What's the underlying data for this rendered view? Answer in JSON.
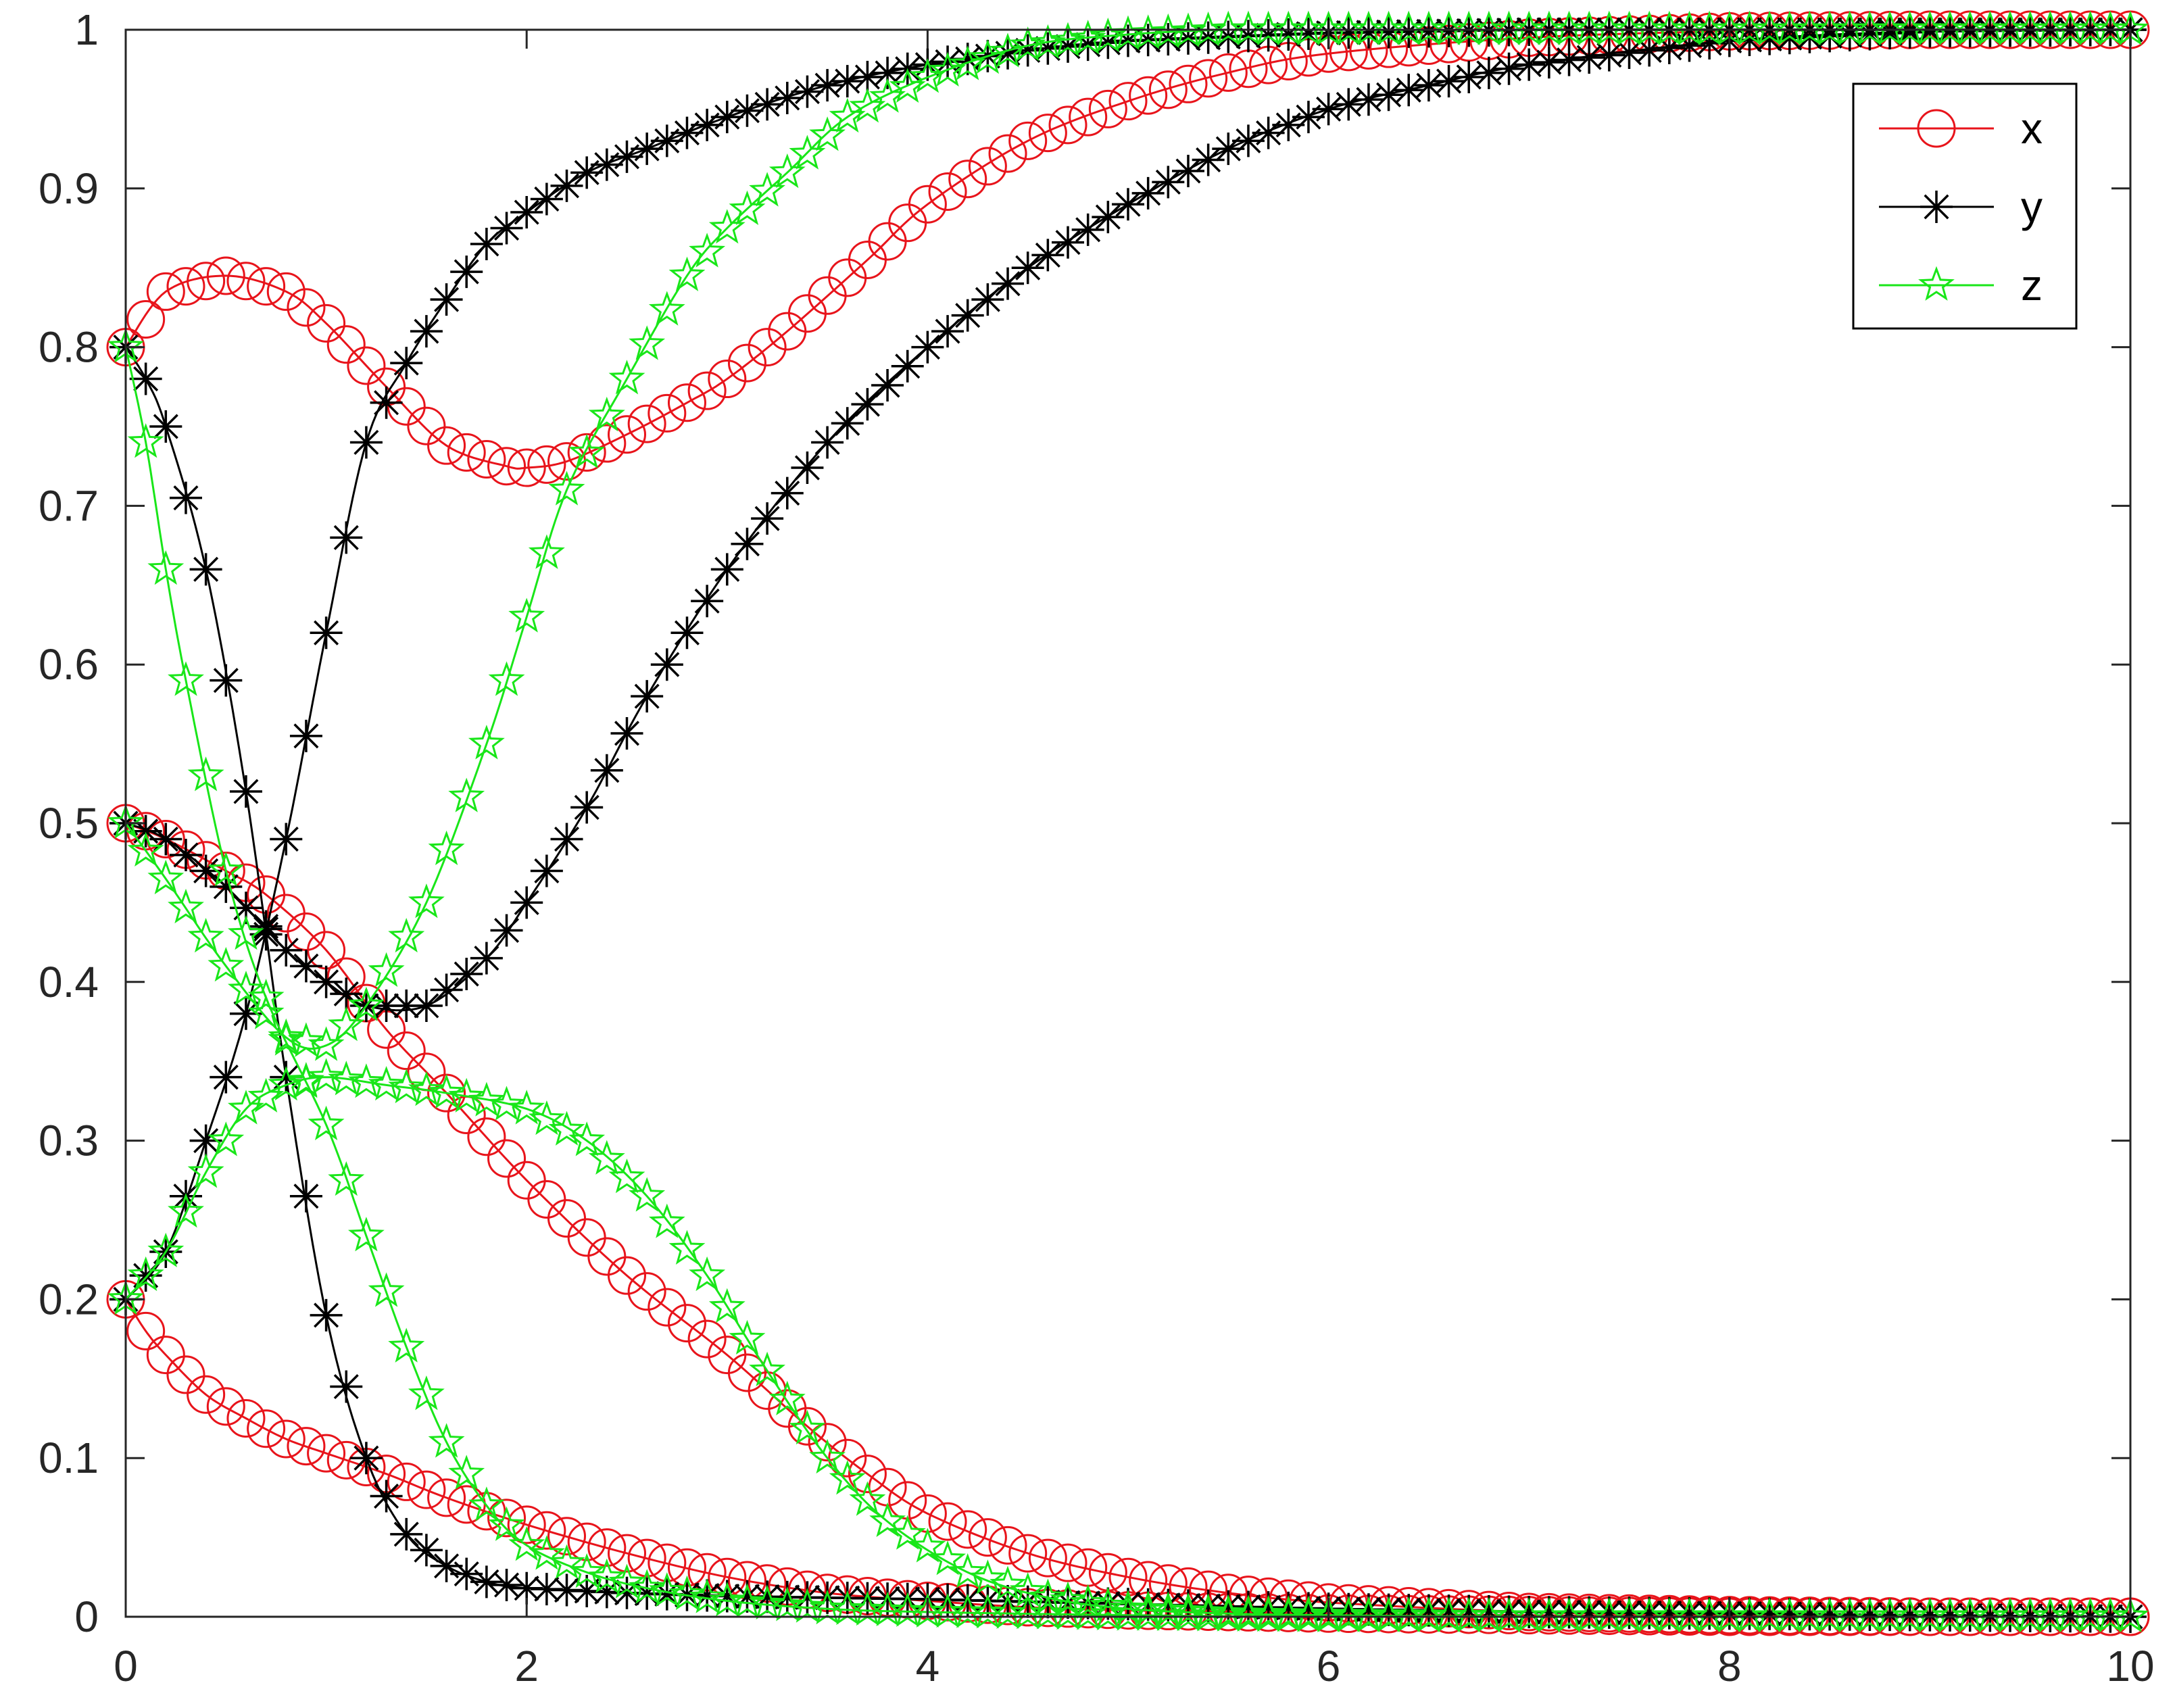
{
  "chart_data": {
    "type": "line",
    "title": "",
    "xlabel": "",
    "ylabel": "",
    "xlim": [
      0,
      10
    ],
    "ylim": [
      0,
      1
    ],
    "x_ticks": [
      0,
      2,
      4,
      6,
      8,
      10
    ],
    "x_tick_labels": [
      "0",
      "2",
      "4",
      "6",
      "8",
      "10"
    ],
    "y_ticks": [
      0,
      0.1,
      0.2,
      0.3,
      0.4,
      0.5,
      0.6,
      0.7,
      0.8,
      0.9,
      1
    ],
    "y_tick_labels": [
      "0",
      "0.1",
      "0.2",
      "0.3",
      "0.4",
      "0.5",
      "0.6",
      "0.7",
      "0.8",
      "0.9",
      "1"
    ],
    "grid": false,
    "legend_position": "top-right",
    "legend": [
      {
        "label": "x",
        "color": "#e8141b",
        "marker": "circle"
      },
      {
        "label": "y",
        "color": "#000000",
        "marker": "asterisk"
      },
      {
        "label": "z",
        "color": "#19e619",
        "marker": "pentagram"
      }
    ],
    "series": [
      {
        "name": "x",
        "color": "#e8141b",
        "marker": "circle",
        "x": [
          0,
          0.2,
          0.5,
          0.8,
          1.0,
          1.3,
          1.6,
          1.9,
          2.0,
          2.2,
          2.5,
          2.8,
          3.0,
          3.3,
          3.7,
          4.0,
          4.5,
          5.0,
          5.5,
          6.0,
          7.0,
          8.0,
          9.0,
          10.0
        ],
        "values": [
          0.8,
          0.835,
          0.845,
          0.835,
          0.815,
          0.775,
          0.738,
          0.725,
          0.724,
          0.728,
          0.745,
          0.765,
          0.78,
          0.81,
          0.855,
          0.89,
          0.93,
          0.955,
          0.973,
          0.985,
          0.995,
          0.999,
          1.0,
          1.0
        ]
      },
      {
        "name": "x",
        "color": "#e8141b",
        "marker": "circle",
        "x": [
          0,
          0.2,
          0.5,
          0.7,
          1.0,
          1.3,
          1.6,
          2.0,
          2.5,
          3.0,
          3.4,
          3.7,
          4.0,
          4.5,
          5.0,
          5.5,
          6.0,
          7.0,
          8.0,
          9.0,
          10.0
        ],
        "values": [
          0.5,
          0.49,
          0.47,
          0.455,
          0.42,
          0.37,
          0.33,
          0.275,
          0.215,
          0.165,
          0.12,
          0.09,
          0.065,
          0.04,
          0.025,
          0.015,
          0.009,
          0.003,
          0.001,
          0.0,
          0.0
        ]
      },
      {
        "name": "x",
        "color": "#e8141b",
        "marker": "circle",
        "x": [
          0,
          0.1,
          0.2,
          0.4,
          0.6,
          0.8,
          1.0,
          1.3,
          1.6,
          2.0,
          2.5,
          3.0,
          3.5,
          4.0,
          4.5,
          5.0,
          5.5,
          6.0,
          7.0,
          8.0,
          9.0,
          10.0
        ],
        "values": [
          0.2,
          0.18,
          0.165,
          0.14,
          0.125,
          0.112,
          0.103,
          0.09,
          0.075,
          0.058,
          0.04,
          0.025,
          0.015,
          0.01,
          0.006,
          0.004,
          0.003,
          0.002,
          0.001,
          0.0,
          0.0,
          0.0
        ]
      },
      {
        "name": "y",
        "color": "#000000",
        "marker": "asterisk",
        "x": [
          0,
          0.2,
          0.4,
          0.6,
          0.8,
          1.0,
          1.2,
          1.4,
          1.6,
          1.8,
          2.0,
          2.3,
          2.6,
          3.0,
          3.5,
          4.0,
          4.5,
          5.0,
          6.0,
          7.0,
          8.0,
          9.0,
          10.0
        ],
        "values": [
          0.2,
          0.23,
          0.3,
          0.38,
          0.49,
          0.62,
          0.74,
          0.79,
          0.83,
          0.865,
          0.885,
          0.91,
          0.925,
          0.945,
          0.965,
          0.978,
          0.987,
          0.993,
          0.998,
          1.0,
          1.0,
          1.0,
          1.0
        ]
      },
      {
        "name": "y",
        "color": "#000000",
        "marker": "asterisk",
        "x": [
          0,
          0.2,
          0.5,
          0.8,
          1.0,
          1.2,
          1.5,
          1.8,
          2.0,
          2.3,
          2.6,
          3.0,
          3.5,
          4.0,
          4.5,
          5.0,
          5.5,
          6.0,
          6.5,
          7.0,
          8.0,
          9.0,
          10.0
        ],
        "values": [
          0.5,
          0.49,
          0.46,
          0.42,
          0.4,
          0.385,
          0.385,
          0.415,
          0.45,
          0.51,
          0.58,
          0.66,
          0.74,
          0.8,
          0.85,
          0.89,
          0.925,
          0.95,
          0.965,
          0.978,
          0.993,
          0.999,
          1.0
        ]
      },
      {
        "name": "y",
        "color": "#000000",
        "marker": "asterisk",
        "x": [
          0,
          0.1,
          0.2,
          0.4,
          0.6,
          0.8,
          1.0,
          1.2,
          1.4,
          1.6,
          1.8,
          2.0,
          2.5,
          3.0,
          4.0,
          5.0,
          6.0,
          7.0,
          8.0,
          9.0,
          10.0
        ],
        "values": [
          0.8,
          0.78,
          0.75,
          0.66,
          0.52,
          0.34,
          0.19,
          0.1,
          0.052,
          0.032,
          0.022,
          0.018,
          0.015,
          0.013,
          0.011,
          0.008,
          0.005,
          0.003,
          0.002,
          0.001,
          0.0
        ]
      },
      {
        "name": "z",
        "color": "#19e619",
        "marker": "pentagram",
        "x": [
          0,
          0.2,
          0.5,
          0.8,
          1.0,
          1.2,
          1.5,
          1.8,
          2.0,
          2.2,
          2.5,
          2.8,
          3.0,
          3.3,
          3.6,
          4.0,
          4.5,
          5.0,
          5.5,
          6.0,
          7.0,
          8.0,
          9.0,
          10.0
        ],
        "values": [
          0.5,
          0.465,
          0.41,
          0.365,
          0.36,
          0.385,
          0.45,
          0.55,
          0.63,
          0.71,
          0.78,
          0.845,
          0.875,
          0.91,
          0.945,
          0.97,
          0.99,
          0.997,
          1.0,
          1.0,
          1.0,
          1.0,
          1.0,
          1.0
        ]
      },
      {
        "name": "z",
        "color": "#19e619",
        "marker": "pentagram",
        "x": [
          0,
          0.2,
          0.4,
          0.6,
          0.8,
          1.0,
          1.3,
          1.6,
          2.0,
          2.3,
          2.6,
          2.9,
          3.2,
          3.5,
          3.8,
          4.2,
          4.6,
          5.0,
          5.5,
          6.0,
          7.0,
          8.0,
          9.0,
          10.0
        ],
        "values": [
          0.2,
          0.23,
          0.28,
          0.32,
          0.335,
          0.34,
          0.335,
          0.33,
          0.32,
          0.3,
          0.265,
          0.215,
          0.155,
          0.1,
          0.06,
          0.028,
          0.012,
          0.005,
          0.002,
          0.001,
          0.0,
          0.0,
          0.0,
          0.0
        ]
      },
      {
        "name": "z",
        "color": "#19e619",
        "marker": "pentagram",
        "x": [
          0,
          0.1,
          0.2,
          0.3,
          0.5,
          0.7,
          1.0,
          1.2,
          1.4,
          1.6,
          1.8,
          2.0,
          2.3,
          2.6,
          3.0,
          3.5,
          4.0,
          5.0,
          6.0,
          7.0,
          8.0,
          9.0,
          10.0
        ],
        "values": [
          0.8,
          0.74,
          0.66,
          0.59,
          0.47,
          0.39,
          0.31,
          0.24,
          0.17,
          0.11,
          0.07,
          0.045,
          0.028,
          0.018,
          0.01,
          0.005,
          0.003,
          0.001,
          0.0,
          0.0,
          0.0,
          0.0,
          0.0
        ]
      }
    ]
  }
}
